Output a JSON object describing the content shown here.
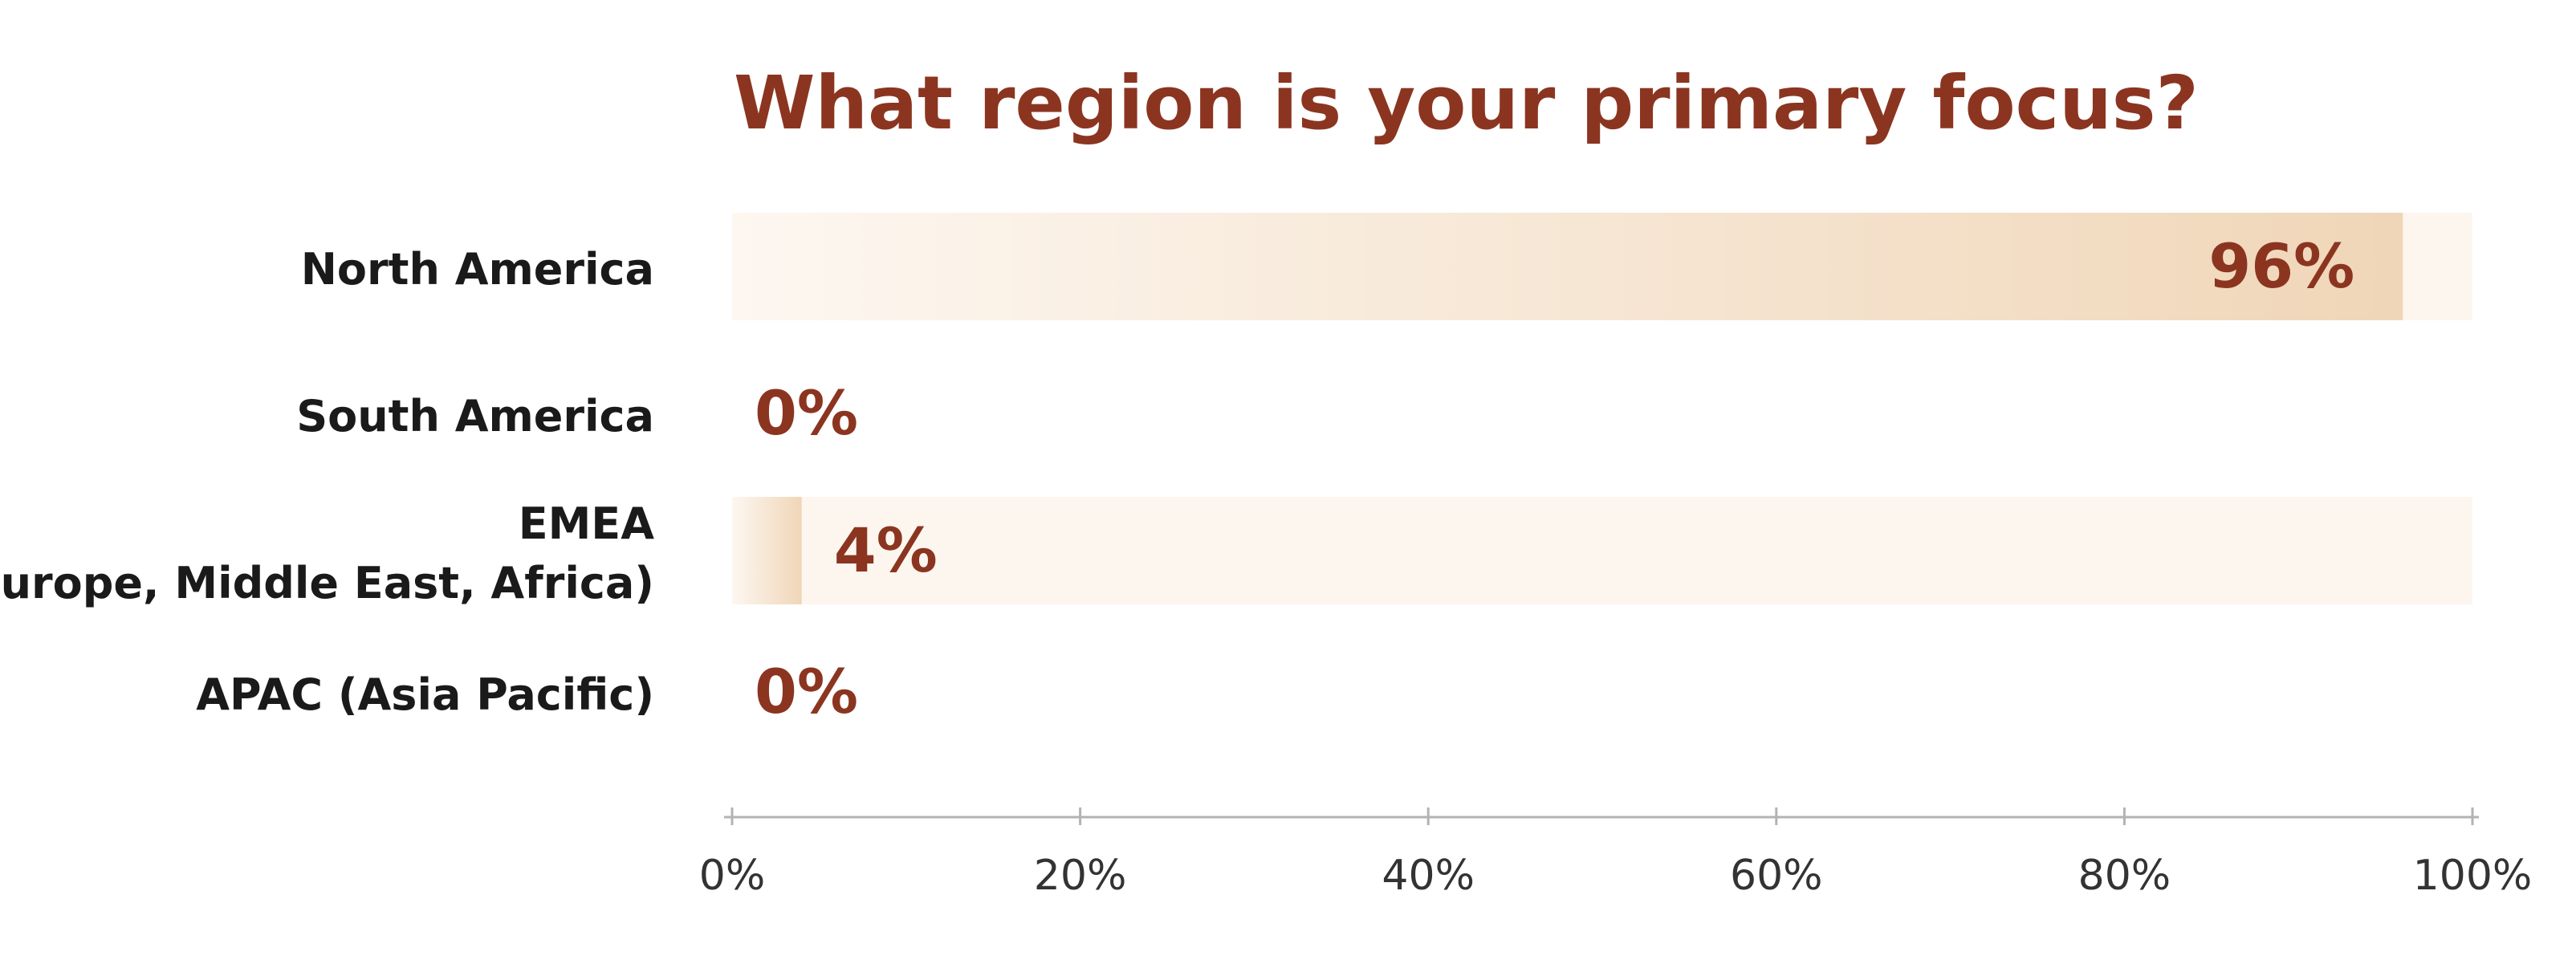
{
  "chart_data": {
    "type": "bar",
    "orientation": "horizontal",
    "title": "What region is your primary focus?",
    "categories": [
      [
        "North America"
      ],
      [
        "South America"
      ],
      [
        "EMEA",
        "(Europe, Middle East, Africa)"
      ],
      [
        "APAC (Asia Pacific)"
      ]
    ],
    "values": [
      96,
      0,
      4,
      0
    ],
    "value_labels": [
      "96%",
      "0%",
      "4%",
      "0%"
    ],
    "xlim": [
      0,
      100
    ],
    "xticks": [
      0,
      20,
      40,
      60,
      80,
      100
    ],
    "xtick_labels": [
      "0%",
      "20%",
      "40%",
      "60%",
      "80%",
      "100%"
    ],
    "grid": false,
    "legend": "none",
    "colors": {
      "title": "#8b3520",
      "value_label": "#8b3520",
      "category_label": "#1a1a1a",
      "track": "#fcf6ef",
      "bar_start": "#fdf7f1",
      "bar_end": "#f0d6b8",
      "axis": "#b3b3b3",
      "tick_label": "#333333"
    }
  }
}
